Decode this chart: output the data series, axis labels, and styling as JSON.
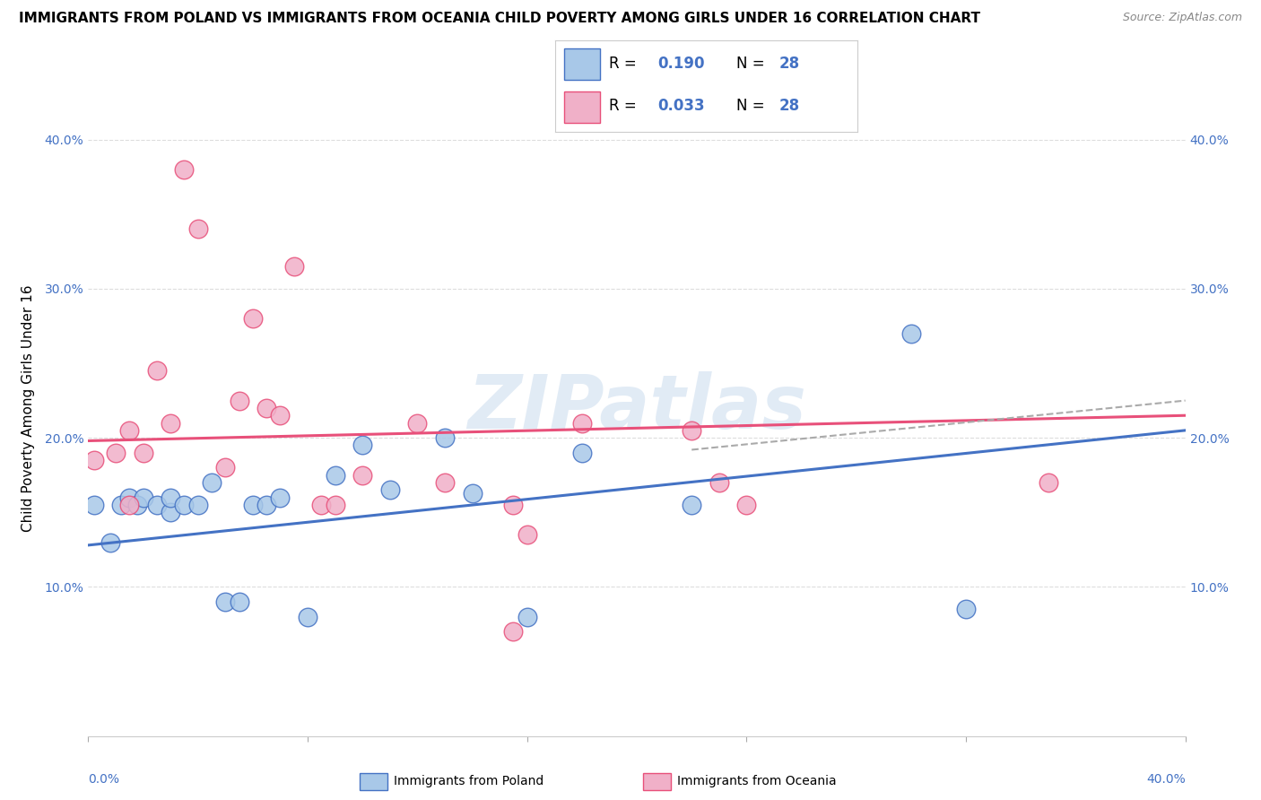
{
  "title": "IMMIGRANTS FROM POLAND VS IMMIGRANTS FROM OCEANIA CHILD POVERTY AMONG GIRLS UNDER 16 CORRELATION CHART",
  "source": "Source: ZipAtlas.com",
  "ylabel": "Child Poverty Among Girls Under 16",
  "xlim": [
    0.0,
    0.4
  ],
  "ylim": [
    0.0,
    0.44
  ],
  "yticks": [
    0.1,
    0.2,
    0.3,
    0.4
  ],
  "ytick_labels": [
    "10.0%",
    "20.0%",
    "30.0%",
    "40.0%"
  ],
  "color_poland": "#a8c8e8",
  "color_oceania": "#f0b0c8",
  "color_poland_line": "#4472c4",
  "color_oceania_line": "#e8507a",
  "color_dashed": "#aaaaaa",
  "poland_x": [
    0.002,
    0.008,
    0.012,
    0.015,
    0.018,
    0.02,
    0.025,
    0.03,
    0.03,
    0.035,
    0.04,
    0.045,
    0.05,
    0.055,
    0.06,
    0.065,
    0.07,
    0.08,
    0.09,
    0.1,
    0.11,
    0.13,
    0.14,
    0.16,
    0.18,
    0.22,
    0.3,
    0.32
  ],
  "poland_y": [
    0.155,
    0.13,
    0.155,
    0.16,
    0.155,
    0.16,
    0.155,
    0.15,
    0.16,
    0.155,
    0.155,
    0.17,
    0.09,
    0.09,
    0.155,
    0.155,
    0.16,
    0.08,
    0.175,
    0.195,
    0.165,
    0.2,
    0.163,
    0.08,
    0.19,
    0.155,
    0.27,
    0.085
  ],
  "oceania_x": [
    0.002,
    0.01,
    0.015,
    0.015,
    0.02,
    0.025,
    0.03,
    0.035,
    0.04,
    0.05,
    0.055,
    0.06,
    0.065,
    0.07,
    0.075,
    0.085,
    0.09,
    0.1,
    0.12,
    0.13,
    0.155,
    0.155,
    0.16,
    0.18,
    0.22,
    0.23,
    0.24,
    0.35
  ],
  "oceania_y": [
    0.185,
    0.19,
    0.205,
    0.155,
    0.19,
    0.245,
    0.21,
    0.38,
    0.34,
    0.18,
    0.225,
    0.28,
    0.22,
    0.215,
    0.315,
    0.155,
    0.155,
    0.175,
    0.21,
    0.17,
    0.155,
    0.07,
    0.135,
    0.21,
    0.205,
    0.17,
    0.155,
    0.17
  ],
  "poland_line_x0": 0.0,
  "poland_line_y0": 0.128,
  "poland_line_x1": 0.4,
  "poland_line_y1": 0.205,
  "oceania_line_x0": 0.0,
  "oceania_line_y0": 0.198,
  "oceania_line_x1": 0.4,
  "oceania_line_y1": 0.215,
  "dashed_line_x0": 0.22,
  "dashed_line_y0": 0.192,
  "dashed_line_x1": 0.4,
  "dashed_line_y1": 0.225,
  "watermark": "ZIPatlas",
  "background_color": "#ffffff",
  "title_fontsize": 11,
  "axis_label_fontsize": 11,
  "tick_fontsize": 10,
  "legend_fontsize": 13,
  "legend_r_poland": "0.190",
  "legend_r_oceania": "0.033",
  "legend_n": "28"
}
